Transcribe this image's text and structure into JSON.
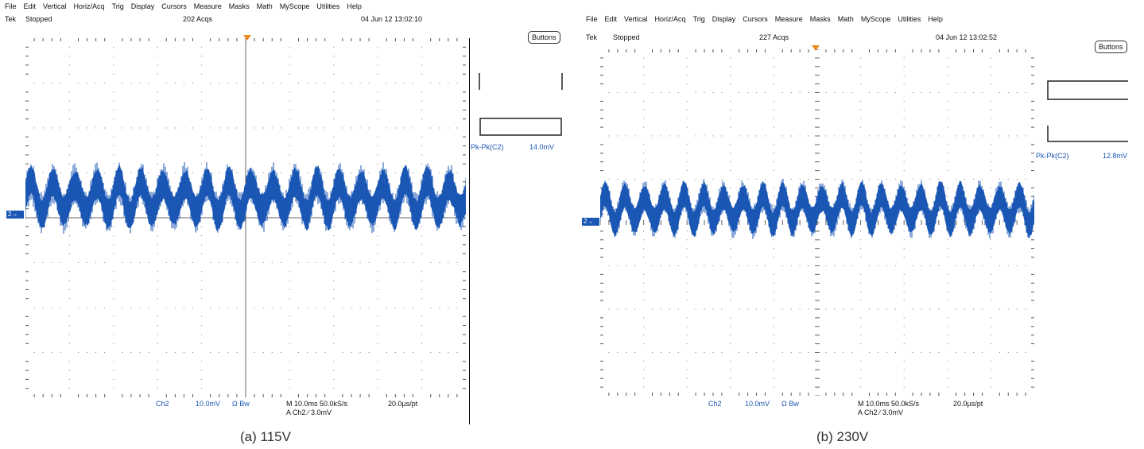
{
  "colors": {
    "trace": "#1a56b4",
    "trigger": "#f08a1c",
    "grid": "#555555"
  },
  "scope_a": {
    "menu": [
      "File",
      "Edit",
      "Vertical",
      "Horiz/Acq",
      "Trig",
      "Display",
      "Cursors",
      "Measure",
      "Masks",
      "Math",
      "MyScope",
      "Utilities",
      "Help"
    ],
    "status_prefix": "Tek",
    "status": "Stopped",
    "acqs": "202 Acqs",
    "date": "04 Jun 12 13:02:10",
    "buttons_label": "Buttons",
    "measurement": {
      "label": "Pk-Pk(C2)",
      "value": "14.0mV"
    },
    "channel_marker": "2",
    "bottom": {
      "channel": "Ch2",
      "scale": "10.0mV",
      "bw": "Ω Bw",
      "timebase": "M 10.0ms 50.0kS/s",
      "resolution": "20.0µs/pt",
      "trigger": "A Ch2 ∕ 3.0mV"
    },
    "caption": "(a) 115V"
  },
  "scope_b": {
    "menu": [
      "File",
      "Edit",
      "Vertical",
      "Horiz/Acq",
      "Trig",
      "Display",
      "Cursors",
      "Measure",
      "Masks",
      "Math",
      "MyScope",
      "Utilities",
      "Help"
    ],
    "status_prefix": "Tek",
    "status": "Stopped",
    "acqs": "227 Acqs",
    "date": "04 Jun 12 13:02:52",
    "buttons_label": "Buttons",
    "measurement": {
      "label": "Pk-Pk(C2)",
      "value": "12.8mV"
    },
    "channel_marker": "2",
    "bottom": {
      "channel": "Ch2",
      "scale": "10.0mV",
      "bw": "Ω Bw",
      "timebase": "M 10.0ms 50.0kS/s",
      "resolution": "20.0µs/pt",
      "trigger": "A Ch2 ∕ 3.0mV"
    },
    "caption": "(b) 230V"
  }
}
